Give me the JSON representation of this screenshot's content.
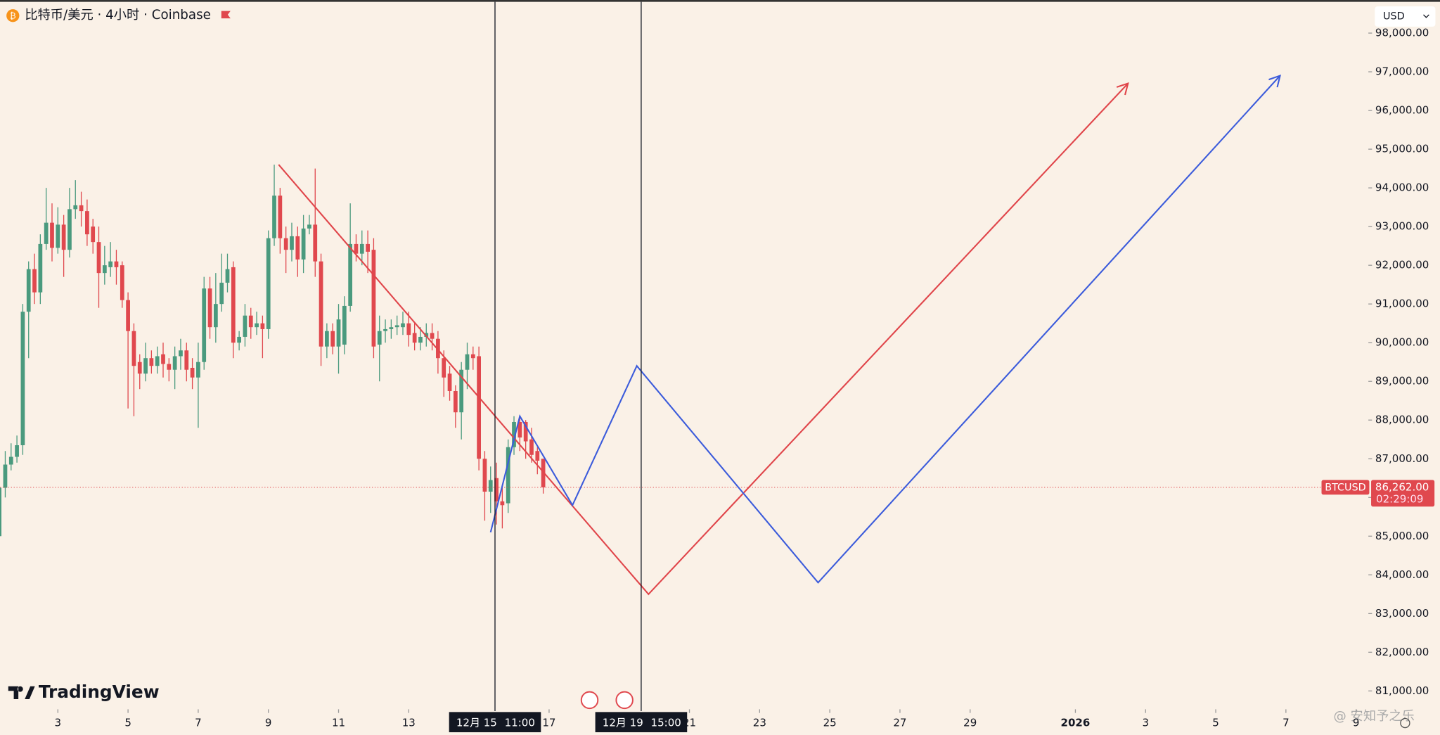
{
  "header": {
    "title": "比特币/美元 · 4小时 · Coinbase",
    "currency": "USD",
    "brand": "TradingView",
    "watermark": "@ 安知予之乐"
  },
  "chart_data": {
    "type": "candlestick",
    "up_color": "#4a9a7e",
    "down_color": "#e0484e",
    "grid": false,
    "x": [
      "12月 1 08:00",
      "12月 1 12:00",
      "12月 1 16:00",
      "12月 1 20:00",
      "12月 2 00:00",
      "12月 2 04:00",
      "12月 2 08:00",
      "12月 2 12:00",
      "12月 2 16:00",
      "12月 2 20:00",
      "12月 3 00:00",
      "12月 3 04:00",
      "12月 3 08:00",
      "12月 3 12:00",
      "12月 3 16:00",
      "12月 3 20:00",
      "12月 4 00:00",
      "12月 4 04:00",
      "12月 4 08:00",
      "12月 4 12:00",
      "12月 4 16:00",
      "12月 4 20:00",
      "12月 5 00:00",
      "12月 5 04:00",
      "12月 5 08:00",
      "12月 5 12:00",
      "12月 5 16:00",
      "12月 5 20:00",
      "12月 6 00:00",
      "12月 6 04:00",
      "12月 6 08:00",
      "12月 6 12:00",
      "12月 6 16:00",
      "12月 6 20:00",
      "12月 7 00:00",
      "12月 7 04:00",
      "12月 7 08:00",
      "12月 7 12:00",
      "12月 7 16:00",
      "12月 7 20:00",
      "12月 8 00:00",
      "12月 8 04:00",
      "12月 8 08:00",
      "12月 8 12:00",
      "12月 8 16:00",
      "12月 8 20:00",
      "12月 9 00:00",
      "12月 9 04:00",
      "12月 9 08:00",
      "12月 9 12:00",
      "12月 9 16:00",
      "12月 9 20:00",
      "12月 10 00:00",
      "12月 10 04:00",
      "12月 10 08:00",
      "12月 10 12:00",
      "12月 10 16:00",
      "12月 10 20:00",
      "12月 11 00:00",
      "12月 11 04:00",
      "12月 11 08:00",
      "12月 11 12:00",
      "12月 11 16:00",
      "12月 11 20:00",
      "12月 12 00:00",
      "12月 12 04:00",
      "12月 12 08:00",
      "12月 12 12:00",
      "12月 12 16:00",
      "12月 12 20:00",
      "12月 13 00:00",
      "12月 13 04:00",
      "12月 13 08:00",
      "12月 13 12:00",
      "12月 13 16:00",
      "12月 13 20:00",
      "12月 14 00:00",
      "12月 14 04:00",
      "12月 14 08:00",
      "12月 14 12:00",
      "12月 14 16:00",
      "12月 14 20:00",
      "12月 15 00:00",
      "12月 15 04:00",
      "12月 15 08:00",
      "12月 15 12:00",
      "12月 15 16:00",
      "12月 15 20:00",
      "12月 16 00:00",
      "12月 16 04:00",
      "12月 16 08:00",
      "12月 16 12:00",
      "12月 16 16:00",
      "12月 16 20:00"
    ],
    "open": [
      85000,
      86250,
      86850,
      87050,
      87350,
      90800,
      91900,
      91300,
      92550,
      93100,
      92450,
      93050,
      92400,
      93450,
      93550,
      93400,
      93000,
      92600,
      91800,
      91950,
      92100,
      92000,
      91100,
      90300,
      89500,
      89200,
      89600,
      89400,
      89700,
      89450,
      89300,
      89650,
      89800,
      89350,
      89100,
      89500,
      91400,
      90400,
      91000,
      91550,
      91950,
      90000,
      90150,
      90700,
      90400,
      90500,
      90350,
      92700,
      93800,
      92700,
      92400,
      92750,
      92150,
      92950,
      93050,
      92100,
      89900,
      90300,
      89900,
      89950,
      90950,
      92550,
      92300,
      92550,
      92400,
      89950,
      90300,
      90350,
      90400,
      90400,
      90500,
      90250,
      90000,
      90150,
      90250,
      90100,
      89600,
      89200,
      88750,
      88200,
      89300,
      89700,
      89650,
      87000,
      86150,
      86500,
      85900,
      85850,
      87300,
      87950,
      87950,
      87500,
      87200,
      87000
    ],
    "high": [
      86300,
      87200,
      87400,
      87600,
      91000,
      92100,
      92300,
      92800,
      94000,
      93600,
      93500,
      93300,
      94000,
      94200,
      93900,
      93700,
      93200,
      93000,
      92500,
      92600,
      92400,
      92100,
      91300,
      90500,
      89700,
      90000,
      89800,
      89900,
      90000,
      89600,
      89900,
      90100,
      90000,
      89600,
      90000,
      91700,
      91700,
      91800,
      92300,
      92300,
      92100,
      90300,
      91000,
      90900,
      90800,
      90700,
      92900,
      94600,
      94000,
      93000,
      93100,
      93000,
      93300,
      93300,
      94500,
      92300,
      90500,
      90500,
      91000,
      91200,
      93600,
      92800,
      92900,
      92900,
      92700,
      90700,
      90600,
      90600,
      90700,
      90800,
      90800,
      90500,
      90400,
      90500,
      90500,
      90300,
      89800,
      89400,
      88900,
      89500,
      90000,
      89900,
      89900,
      87200,
      86800,
      86900,
      86300,
      87500,
      88100,
      88100,
      88000,
      87800,
      87300,
      87000
    ],
    "low": [
      84700,
      86000,
      86700,
      86900,
      87100,
      89600,
      91000,
      91000,
      92400,
      92100,
      92300,
      91700,
      92200,
      93200,
      93000,
      92500,
      92300,
      90900,
      91500,
      91700,
      91500,
      90900,
      88300,
      88100,
      88800,
      89000,
      89200,
      89200,
      89100,
      89000,
      88800,
      89300,
      89000,
      88800,
      87800,
      89300,
      90100,
      90000,
      90800,
      91300,
      89600,
      89800,
      89900,
      90100,
      90200,
      89600,
      90100,
      92500,
      92300,
      91800,
      92100,
      91700,
      91800,
      92800,
      91700,
      89400,
      89600,
      89700,
      89200,
      89700,
      90800,
      92100,
      92000,
      91800,
      89600,
      89000,
      90000,
      90100,
      90200,
      90200,
      89900,
      89800,
      89800,
      89900,
      89800,
      89200,
      88600,
      88500,
      87800,
      87500,
      88800,
      89300,
      86700,
      85400,
      85600,
      85300,
      85200,
      85600,
      87100,
      87200,
      87000,
      86900,
      86600,
      86100
    ],
    "close": [
      86250,
      86850,
      87050,
      87350,
      90800,
      91900,
      91300,
      92550,
      93100,
      92450,
      93050,
      92400,
      93450,
      93550,
      93400,
      92800,
      92600,
      91800,
      92000,
      92100,
      91950,
      91100,
      90300,
      89400,
      89200,
      89600,
      89400,
      89650,
      89450,
      89300,
      89650,
      89800,
      89300,
      89100,
      89500,
      91400,
      90400,
      91000,
      91550,
      91900,
      90000,
      90150,
      90700,
      90400,
      90500,
      90350,
      92700,
      93800,
      92700,
      92400,
      92750,
      92150,
      92950,
      93050,
      92100,
      89900,
      90300,
      89900,
      90600,
      90950,
      92550,
      92300,
      92550,
      92350,
      89900,
      90300,
      90350,
      90400,
      90450,
      90500,
      90200,
      90000,
      90150,
      90250,
      90100,
      89600,
      89100,
      88750,
      88200,
      89300,
      89700,
      89600,
      87000,
      86150,
      86450,
      85900,
      85800,
      87300,
      87950,
      87550,
      87450,
      87100,
      86950,
      86262
    ],
    "xlim": [
      "12月 1 08:25",
      "1月 9 08:24"
    ],
    "ylim": [
      80574,
      98855
    ],
    "yticks": [
      {
        "value": 81000,
        "label": "81,000.00"
      },
      {
        "value": 82000,
        "label": "82,000.00"
      },
      {
        "value": 83000,
        "label": "83,000.00"
      },
      {
        "value": 84000,
        "label": "84,000.00"
      },
      {
        "value": 85000,
        "label": "85,000.00"
      },
      {
        "value": 86000,
        "label": "86,000.00"
      },
      {
        "value": 87000,
        "label": "87,000.00"
      },
      {
        "value": 88000,
        "label": "88,000.00"
      },
      {
        "value": 89000,
        "label": "89,000.00"
      },
      {
        "value": 90000,
        "label": "90,000.00"
      },
      {
        "value": 91000,
        "label": "91,000.00"
      },
      {
        "value": 92000,
        "label": "92,000.00"
      },
      {
        "value": 93000,
        "label": "93,000.00"
      },
      {
        "value": 94000,
        "label": "94,000.00"
      },
      {
        "value": 95000,
        "label": "95,000.00"
      },
      {
        "value": 96000,
        "label": "96,000.00"
      },
      {
        "value": 97000,
        "label": "97,000.00"
      },
      {
        "value": 98000,
        "label": "98,000.00"
      }
    ],
    "xticks": [
      {
        "value": "12月 3",
        "label": "3"
      },
      {
        "value": "12月 5",
        "label": "5"
      },
      {
        "value": "12月 7",
        "label": "7"
      },
      {
        "value": "12月 9",
        "label": "9"
      },
      {
        "value": "12月 11",
        "label": "11"
      },
      {
        "value": "12月 13",
        "label": "13"
      },
      {
        "value": "12月 17",
        "label": "17"
      },
      {
        "value": "12月 21",
        "label": "21"
      },
      {
        "value": "12月 23",
        "label": "23"
      },
      {
        "value": "12月 25",
        "label": "25"
      },
      {
        "value": "12月 27",
        "label": "27"
      },
      {
        "value": "12月 29",
        "label": "29"
      },
      {
        "value": "1月 1",
        "label": "2026"
      },
      {
        "value": "1月 3",
        "label": "3"
      },
      {
        "value": "1月 5",
        "label": "5"
      },
      {
        "value": "1月 7",
        "label": "7"
      },
      {
        "value": "1月 9",
        "label": "9"
      }
    ],
    "last_price": {
      "name": "BTCUSD",
      "value": 86262,
      "label": "86,262.00",
      "countdown": "02:29:09",
      "color": "#e0484e"
    },
    "crosshairs": [
      {
        "date": "12月 15",
        "time": "11:00"
      },
      {
        "date": "12月 19",
        "time": "15:00"
      }
    ],
    "drawings": [
      {
        "color": "#e0454a",
        "points": [
          {
            "x": "12月 9 07:00",
            "y": 94600
          },
          {
            "x": "12月 19 20:00",
            "y": 83500
          },
          {
            "x": "1月 2 12:00",
            "y": 96700
          }
        ]
      },
      {
        "color": "#3b5bdb",
        "points": [
          {
            "x": "12月 15 08:00",
            "y": 85100
          },
          {
            "x": "12月 16 04:00",
            "y": 88100
          },
          {
            "x": "12月 17 16:00",
            "y": 85800
          },
          {
            "x": "12月 19 12:00",
            "y": 89400
          },
          {
            "x": "12月 24 16:00",
            "y": 83800
          },
          {
            "x": "1月 6 20:00",
            "y": 96900
          }
        ]
      }
    ]
  }
}
